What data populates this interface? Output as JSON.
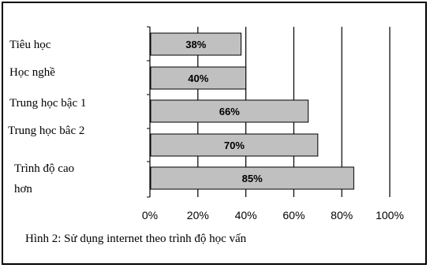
{
  "chart_data": {
    "type": "bar",
    "orientation": "horizontal",
    "categories": [
      [
        "Tiêu học"
      ],
      [
        "Học nghề"
      ],
      [
        "Trung học bậc 1"
      ],
      [
        "Trung học bâc  2"
      ],
      [
        "Trình độ cao",
        "hơn"
      ]
    ],
    "values": [
      38,
      40,
      66,
      70,
      85
    ],
    "data_labels": [
      "38%",
      "40%",
      "66%",
      "70%",
      "85%"
    ],
    "xlim": [
      0,
      100
    ],
    "xticks": [
      0,
      20,
      40,
      60,
      80,
      100
    ],
    "xtick_labels": [
      "0%",
      "20%",
      "40%",
      "60%",
      "80%",
      "100%"
    ],
    "grid": "vertical",
    "bar_color": "#c0c0c0",
    "title": "Hình 2: Sử dụng internet theo trình độ học vấn",
    "xlabel": "",
    "ylabel": ""
  }
}
